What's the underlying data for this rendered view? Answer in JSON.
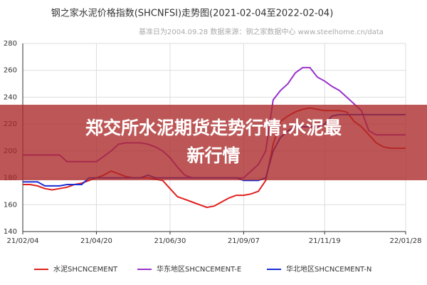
{
  "chart_data": {
    "type": "line",
    "title": "钢之家水泥价格指数(SHCNFSI)走势图(2021-02-04至2022-02-04)",
    "subtitle": "基准日为2004.09.28   数据来源：钢之家数据中心 www.steelhome.cn/data",
    "categories": [
      "21/02/04",
      null,
      null,
      null,
      null,
      null,
      null,
      null,
      null,
      null,
      "21/04/20",
      null,
      null,
      null,
      null,
      null,
      null,
      null,
      null,
      null,
      "21/06/30",
      null,
      null,
      null,
      null,
      null,
      null,
      null,
      null,
      null,
      "21/09/07",
      null,
      null,
      null,
      null,
      null,
      null,
      null,
      null,
      null,
      null,
      "21/11/19",
      null,
      null,
      null,
      null,
      null,
      null,
      null,
      null,
      null,
      null,
      "22/01/28"
    ],
    "series": [
      {
        "name": "水泥SHCNCEMENT",
        "color": "#e0201e",
        "values": [
          175,
          175,
          174,
          172,
          171,
          172,
          173,
          175,
          176,
          178,
          180,
          182,
          185,
          183,
          181,
          180,
          180,
          180,
          179,
          178,
          172,
          166,
          164,
          162,
          160,
          158,
          159,
          162,
          165,
          167,
          167,
          168,
          170,
          178,
          205,
          222,
          226,
          229,
          231,
          232,
          231,
          230,
          230,
          230,
          229,
          222,
          218,
          212,
          206,
          203,
          202,
          202,
          202
        ]
      },
      {
        "name": "华东地区SHCNCEMENT-E",
        "color": "#9933cc",
        "values": [
          197,
          197,
          197,
          197,
          197,
          197,
          192,
          192,
          192,
          192,
          192,
          196,
          200,
          205,
          206,
          206,
          206,
          205,
          203,
          200,
          195,
          188,
          182,
          180,
          180,
          180,
          180,
          180,
          180,
          180,
          180,
          185,
          190,
          200,
          238,
          245,
          250,
          258,
          262,
          262,
          255,
          252,
          248,
          245,
          240,
          235,
          230,
          215,
          212,
          212,
          212,
          212,
          212
        ]
      },
      {
        "name": "华北地区SHCNCEMENT-N",
        "color": "#1a2ed6",
        "values": [
          177,
          177,
          177,
          174,
          174,
          174,
          175,
          175,
          175,
          180,
          180,
          180,
          180,
          180,
          180,
          180,
          180,
          182,
          180,
          180,
          180,
          180,
          180,
          180,
          180,
          180,
          180,
          180,
          180,
          180,
          178,
          178,
          178,
          180,
          200,
          210,
          215,
          218,
          218,
          218,
          218,
          220,
          226,
          227,
          227,
          227,
          227,
          227,
          227,
          227,
          227,
          227,
          227
        ]
      }
    ],
    "ylim": [
      140,
      280
    ],
    "yticks": [
      140,
      160,
      180,
      200,
      220,
      240,
      260,
      280
    ],
    "grid": true,
    "legend": "bottom"
  },
  "banner": {
    "lines": [
      "郑交所水泥期货走势行情:水泥最",
      "新行情"
    ]
  }
}
